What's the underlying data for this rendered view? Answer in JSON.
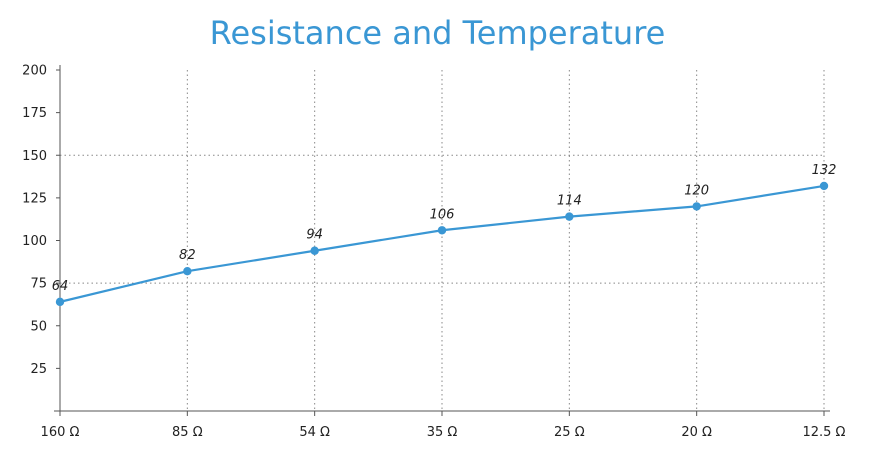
{
  "chart_data": {
    "type": "line",
    "title": "Resistance and Temperature",
    "xlabel": "",
    "ylabel": "",
    "categories": [
      "160 Ω",
      "85 Ω",
      "54 Ω",
      "35 Ω",
      "25 Ω",
      "20 Ω",
      "12.5 Ω"
    ],
    "series": [
      {
        "values": [
          64,
          82,
          94,
          106,
          114,
          120,
          132
        ]
      }
    ],
    "ylim": [
      0,
      200
    ],
    "yticks": [
      25,
      50,
      75,
      100,
      125,
      150,
      175,
      200
    ],
    "ytick_labels": [
      "25",
      "50",
      "75",
      "100",
      "125",
      "150",
      "175",
      "200"
    ],
    "data_labels": [
      "64",
      "82",
      "94",
      "106",
      "114",
      "120",
      "132"
    ],
    "grid": {
      "vertical": true,
      "horizontal_at": [
        75,
        150
      ]
    },
    "colors": {
      "title": "#3a97d4",
      "line": "#3a97d4",
      "axis": "#555555",
      "grid": "#888888"
    }
  }
}
